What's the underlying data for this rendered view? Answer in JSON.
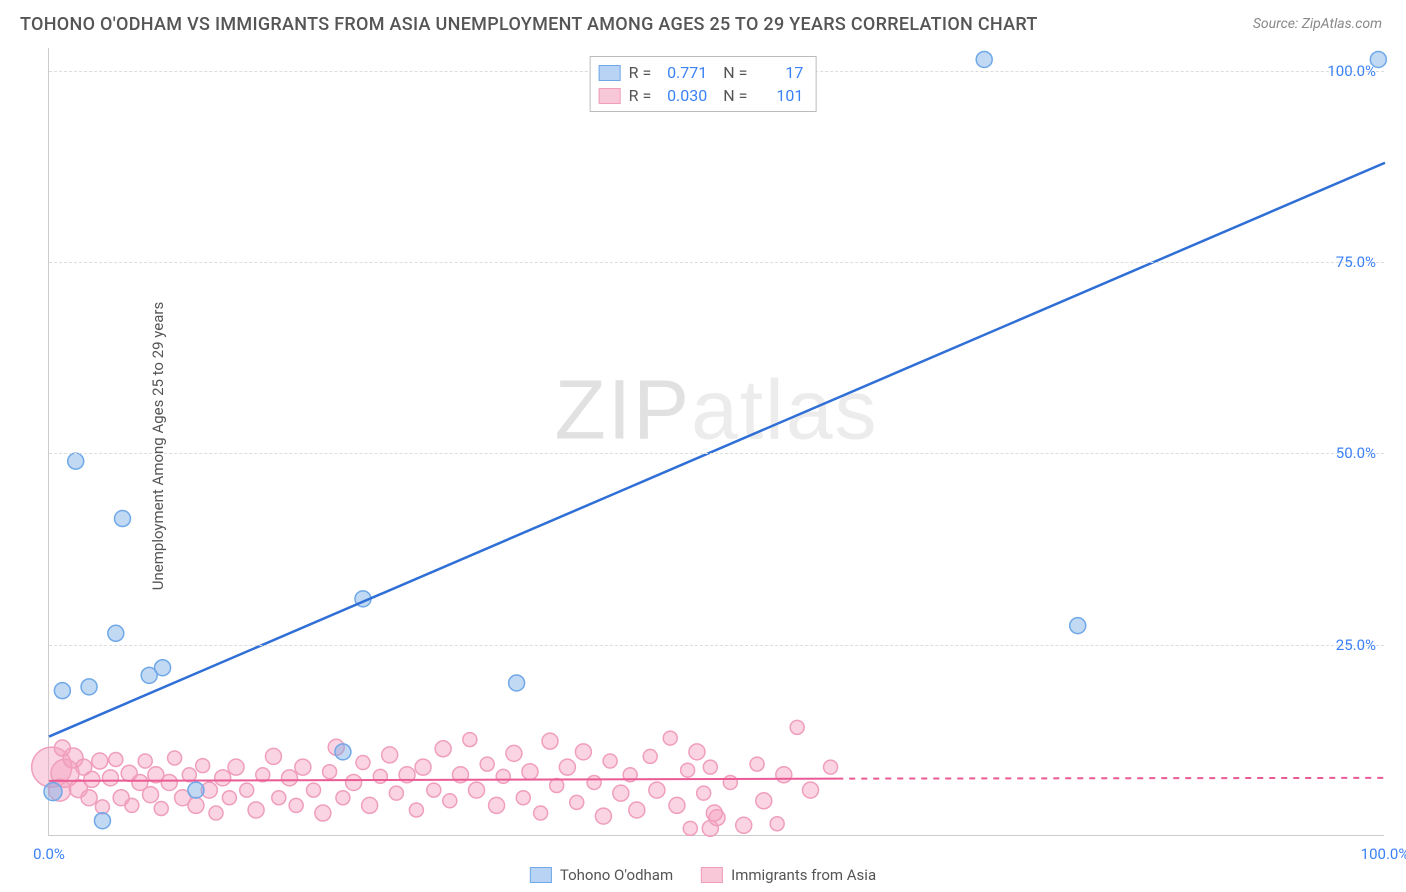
{
  "title": "TOHONO O'ODHAM VS IMMIGRANTS FROM ASIA UNEMPLOYMENT AMONG AGES 25 TO 29 YEARS CORRELATION CHART",
  "source": "Source: ZipAtlas.com",
  "ylabel": "Unemployment Among Ages 25 to 29 years",
  "watermark_a": "ZIP",
  "watermark_b": "atlas",
  "chart": {
    "type": "scatter",
    "xlim": [
      0,
      100
    ],
    "ylim": [
      0,
      103
    ],
    "x_ticks": [
      {
        "v": 0,
        "label": "0.0%"
      },
      {
        "v": 100,
        "label": "100.0%"
      }
    ],
    "y_ticks": [
      {
        "v": 25,
        "label": "25.0%"
      },
      {
        "v": 50,
        "label": "50.0%"
      },
      {
        "v": 75,
        "label": "75.0%"
      },
      {
        "v": 100,
        "label": "100.0%"
      }
    ],
    "y_grid": [
      25,
      50,
      75,
      100
    ],
    "xtick_color": "#3b82f6",
    "ytick_color": "#3b82f6",
    "background_color": "#ffffff",
    "grid_color": "#dddddd",
    "series": [
      {
        "name": "Tohono O'odham",
        "color_fill": "rgba(120,170,230,0.45)",
        "color_stroke": "#6fa8e8",
        "line_color": "#2f6fd6",
        "swatch_fill": "#b9d3f4",
        "swatch_border": "#6fa8e8",
        "R": "0.771",
        "N": "17",
        "trend": {
          "x1": 0,
          "y1": 13,
          "x2": 100,
          "y2": 88,
          "dashed": false
        },
        "points": [
          {
            "x": 0.3,
            "y": 5.8,
            "r": 9
          },
          {
            "x": 1.0,
            "y": 19.0,
            "r": 8
          },
          {
            "x": 2.0,
            "y": 49.0,
            "r": 8
          },
          {
            "x": 3.0,
            "y": 19.5,
            "r": 8
          },
          {
            "x": 4.0,
            "y": 2.0,
            "r": 8
          },
          {
            "x": 5.5,
            "y": 41.5,
            "r": 8
          },
          {
            "x": 5.0,
            "y": 26.5,
            "r": 8
          },
          {
            "x": 7.5,
            "y": 21.0,
            "r": 8
          },
          {
            "x": 8.5,
            "y": 22.0,
            "r": 8
          },
          {
            "x": 11.0,
            "y": 6.0,
            "r": 8
          },
          {
            "x": 22.0,
            "y": 11.0,
            "r": 8
          },
          {
            "x": 23.5,
            "y": 31.0,
            "r": 8
          },
          {
            "x": 35.0,
            "y": 20.0,
            "r": 8
          },
          {
            "x": 70.0,
            "y": 101.5,
            "r": 8
          },
          {
            "x": 77.0,
            "y": 27.5,
            "r": 8
          },
          {
            "x": 99.5,
            "y": 101.5,
            "r": 8
          }
        ]
      },
      {
        "name": "Immigrants from Asia",
        "color_fill": "rgba(244,160,190,0.45)",
        "color_stroke": "#ef9ebc",
        "line_color": "#ea5a95",
        "swatch_fill": "#f8c8d9",
        "swatch_border": "#ef9ebc",
        "R": "0.030",
        "N": "101",
        "trend": {
          "x1": 0,
          "y1": 7.2,
          "x2": 59,
          "y2": 7.5,
          "dashed": false
        },
        "trend_ext": {
          "x1": 59,
          "y1": 7.5,
          "x2": 100,
          "y2": 7.6,
          "dashed": true
        },
        "points": [
          {
            "x": 0.2,
            "y": 9.0,
            "r": 20
          },
          {
            "x": 1.2,
            "y": 8.2,
            "r": 14
          },
          {
            "x": 0.8,
            "y": 6.0,
            "r": 11
          },
          {
            "x": 1.8,
            "y": 10.2,
            "r": 10
          },
          {
            "x": 1.0,
            "y": 11.5,
            "r": 8
          },
          {
            "x": 2.2,
            "y": 6.2,
            "r": 9
          },
          {
            "x": 2.6,
            "y": 9.0,
            "r": 8
          },
          {
            "x": 3.0,
            "y": 5.0,
            "r": 8
          },
          {
            "x": 3.2,
            "y": 7.4,
            "r": 8
          },
          {
            "x": 3.8,
            "y": 9.8,
            "r": 8
          },
          {
            "x": 4.0,
            "y": 3.8,
            "r": 7
          },
          {
            "x": 4.6,
            "y": 7.6,
            "r": 8
          },
          {
            "x": 5.0,
            "y": 10.0,
            "r": 7
          },
          {
            "x": 5.4,
            "y": 5.0,
            "r": 8
          },
          {
            "x": 6.0,
            "y": 8.2,
            "r": 8
          },
          {
            "x": 6.2,
            "y": 4.0,
            "r": 7
          },
          {
            "x": 6.8,
            "y": 7.0,
            "r": 8
          },
          {
            "x": 7.2,
            "y": 9.8,
            "r": 7
          },
          {
            "x": 7.6,
            "y": 5.4,
            "r": 8
          },
          {
            "x": 8.0,
            "y": 8.0,
            "r": 8
          },
          {
            "x": 8.4,
            "y": 3.6,
            "r": 7
          },
          {
            "x": 9.0,
            "y": 7.0,
            "r": 8
          },
          {
            "x": 9.4,
            "y": 10.2,
            "r": 7
          },
          {
            "x": 10.0,
            "y": 5.0,
            "r": 8
          },
          {
            "x": 10.5,
            "y": 8.0,
            "r": 7
          },
          {
            "x": 11.0,
            "y": 4.0,
            "r": 8
          },
          {
            "x": 11.5,
            "y": 9.2,
            "r": 7
          },
          {
            "x": 12.0,
            "y": 6.0,
            "r": 8
          },
          {
            "x": 12.5,
            "y": 3.0,
            "r": 7
          },
          {
            "x": 13.0,
            "y": 7.6,
            "r": 8
          },
          {
            "x": 13.5,
            "y": 5.0,
            "r": 7
          },
          {
            "x": 14.0,
            "y": 9.0,
            "r": 8
          },
          {
            "x": 14.8,
            "y": 6.0,
            "r": 7
          },
          {
            "x": 15.5,
            "y": 3.4,
            "r": 8
          },
          {
            "x": 16.0,
            "y": 8.0,
            "r": 7
          },
          {
            "x": 16.8,
            "y": 10.4,
            "r": 8
          },
          {
            "x": 17.2,
            "y": 5.0,
            "r": 7
          },
          {
            "x": 18.0,
            "y": 7.6,
            "r": 8
          },
          {
            "x": 18.5,
            "y": 4.0,
            "r": 7
          },
          {
            "x": 19.0,
            "y": 9.0,
            "r": 8
          },
          {
            "x": 19.8,
            "y": 6.0,
            "r": 7
          },
          {
            "x": 20.5,
            "y": 3.0,
            "r": 8
          },
          {
            "x": 21.0,
            "y": 8.4,
            "r": 7
          },
          {
            "x": 21.5,
            "y": 11.6,
            "r": 8
          },
          {
            "x": 22.0,
            "y": 5.0,
            "r": 7
          },
          {
            "x": 22.8,
            "y": 7.0,
            "r": 8
          },
          {
            "x": 23.5,
            "y": 9.6,
            "r": 7
          },
          {
            "x": 24.0,
            "y": 4.0,
            "r": 8
          },
          {
            "x": 24.8,
            "y": 7.8,
            "r": 7
          },
          {
            "x": 25.5,
            "y": 10.6,
            "r": 8
          },
          {
            "x": 26.0,
            "y": 5.6,
            "r": 7
          },
          {
            "x": 26.8,
            "y": 8.0,
            "r": 8
          },
          {
            "x": 27.5,
            "y": 3.4,
            "r": 7
          },
          {
            "x": 28.0,
            "y": 9.0,
            "r": 8
          },
          {
            "x": 28.8,
            "y": 6.0,
            "r": 7
          },
          {
            "x": 29.5,
            "y": 11.4,
            "r": 8
          },
          {
            "x": 30.0,
            "y": 4.6,
            "r": 7
          },
          {
            "x": 30.8,
            "y": 8.0,
            "r": 8
          },
          {
            "x": 31.5,
            "y": 12.6,
            "r": 7
          },
          {
            "x": 32.0,
            "y": 6.0,
            "r": 8
          },
          {
            "x": 32.8,
            "y": 9.4,
            "r": 7
          },
          {
            "x": 33.5,
            "y": 4.0,
            "r": 8
          },
          {
            "x": 34.0,
            "y": 7.8,
            "r": 7
          },
          {
            "x": 34.8,
            "y": 10.8,
            "r": 8
          },
          {
            "x": 35.5,
            "y": 5.0,
            "r": 7
          },
          {
            "x": 36.0,
            "y": 8.4,
            "r": 8
          },
          {
            "x": 36.8,
            "y": 3.0,
            "r": 7
          },
          {
            "x": 37.5,
            "y": 12.4,
            "r": 8
          },
          {
            "x": 38.0,
            "y": 6.6,
            "r": 7
          },
          {
            "x": 38.8,
            "y": 9.0,
            "r": 8
          },
          {
            "x": 39.5,
            "y": 4.4,
            "r": 7
          },
          {
            "x": 40.0,
            "y": 11.0,
            "r": 8
          },
          {
            "x": 40.8,
            "y": 7.0,
            "r": 7
          },
          {
            "x": 41.5,
            "y": 2.6,
            "r": 8
          },
          {
            "x": 42.0,
            "y": 9.8,
            "r": 7
          },
          {
            "x": 42.8,
            "y": 5.6,
            "r": 8
          },
          {
            "x": 43.5,
            "y": 8.0,
            "r": 7
          },
          {
            "x": 44.0,
            "y": 3.4,
            "r": 8
          },
          {
            "x": 45.0,
            "y": 10.4,
            "r": 7
          },
          {
            "x": 45.5,
            "y": 6.0,
            "r": 8
          },
          {
            "x": 46.5,
            "y": 12.8,
            "r": 7
          },
          {
            "x": 47.0,
            "y": 4.0,
            "r": 8
          },
          {
            "x": 47.8,
            "y": 8.6,
            "r": 7
          },
          {
            "x": 48.5,
            "y": 11.0,
            "r": 8
          },
          {
            "x": 49.0,
            "y": 5.6,
            "r": 7
          },
          {
            "x": 49.5,
            "y": 1.0,
            "r": 8
          },
          {
            "x": 49.5,
            "y": 9.0,
            "r": 7
          },
          {
            "x": 50.0,
            "y": 2.4,
            "r": 8
          },
          {
            "x": 51.0,
            "y": 7.0,
            "r": 7
          },
          {
            "x": 52.0,
            "y": 1.4,
            "r": 8
          },
          {
            "x": 53.0,
            "y": 9.4,
            "r": 7
          },
          {
            "x": 53.5,
            "y": 4.6,
            "r": 8
          },
          {
            "x": 54.5,
            "y": 1.6,
            "r": 7
          },
          {
            "x": 55.0,
            "y": 8.0,
            "r": 8
          },
          {
            "x": 56.0,
            "y": 14.2,
            "r": 7
          },
          {
            "x": 57.0,
            "y": 6.0,
            "r": 8
          },
          {
            "x": 58.5,
            "y": 9.0,
            "r": 7
          },
          {
            "x": 49.8,
            "y": 3.0,
            "r": 8
          },
          {
            "x": 48.0,
            "y": 1.0,
            "r": 7
          }
        ]
      }
    ],
    "series_legend": [
      {
        "label": "Tohono O'odham",
        "fill": "#b9d3f4",
        "border": "#6fa8e8"
      },
      {
        "label": "Immigrants from Asia",
        "fill": "#f8c8d9",
        "border": "#ef9ebc"
      }
    ]
  }
}
